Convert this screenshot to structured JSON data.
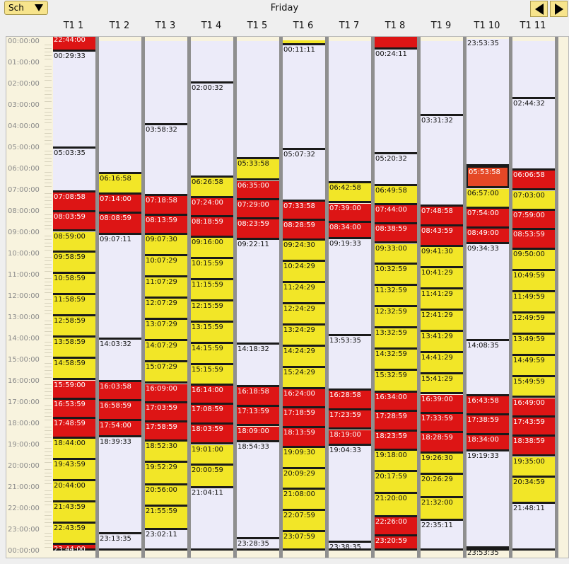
{
  "header": {
    "schedule_label": "Sch",
    "day": "Friday"
  },
  "hours": [
    "00:00:00",
    "01:00:00",
    "02:00:00",
    "03:00:00",
    "04:00:00",
    "05:00:00",
    "06:00:00",
    "07:00:00",
    "08:00:00",
    "09:00:00",
    "10:00:00",
    "11:00:00",
    "12:00:00",
    "13:00:00",
    "14:00:00",
    "15:00:00",
    "16:00:00",
    "17:00:00",
    "18:00:00",
    "19:00:00",
    "20:00:00",
    "21:00:00",
    "22:00:00",
    "23:00:00",
    "00:00:00"
  ],
  "columns": [
    {
      "name": "T1 1",
      "blocks": [
        {
          "t": "22:44:00",
          "s": "red",
          "b": "-0:16"
        },
        {
          "t": "00:29:33",
          "s": "idle"
        },
        {
          "t": "05:03:35",
          "s": "idle"
        },
        {
          "t": "07:08:58",
          "s": "red"
        },
        {
          "t": "08:03:59",
          "s": "red"
        },
        {
          "t": "08:59:00",
          "s": "yellow"
        },
        {
          "t": "09:58:59",
          "s": "yellow"
        },
        {
          "t": "10:58:59",
          "s": "yellow"
        },
        {
          "t": "11:58:59",
          "s": "yellow"
        },
        {
          "t": "12:58:59",
          "s": "yellow"
        },
        {
          "t": "13:58:59",
          "s": "yellow"
        },
        {
          "t": "14:58:59",
          "s": "yellow"
        },
        {
          "t": "15:59:00",
          "s": "red"
        },
        {
          "t": "16:53:59",
          "s": "red"
        },
        {
          "t": "17:48:59",
          "s": "red"
        },
        {
          "t": "18:44:00",
          "s": "yellow"
        },
        {
          "t": "19:43:59",
          "s": "yellow"
        },
        {
          "t": "20:44:00",
          "s": "yellow"
        },
        {
          "t": "21:43:59",
          "s": "yellow"
        },
        {
          "t": "22:43:59",
          "s": "yellow"
        },
        {
          "t": "23:44:00",
          "s": "red"
        }
      ]
    },
    {
      "name": "T1 2",
      "blocks": [
        {
          "t": "",
          "s": "idle",
          "b": "00:00:00"
        },
        {
          "t": "06:16:58",
          "s": "yellow"
        },
        {
          "t": "07:14:00",
          "s": "red"
        },
        {
          "t": "08:08:59",
          "s": "red"
        },
        {
          "t": "09:07:11",
          "s": "idle"
        },
        {
          "t": "14:03:32",
          "s": "idle"
        },
        {
          "t": "16:03:58",
          "s": "red"
        },
        {
          "t": "16:58:59",
          "s": "red"
        },
        {
          "t": "17:54:00",
          "s": "red"
        },
        {
          "t": "18:39:33",
          "s": "idle"
        },
        {
          "t": "23:13:35",
          "s": "idle"
        }
      ]
    },
    {
      "name": "T1 3",
      "blocks": [
        {
          "t": "",
          "s": "idle",
          "b": "00:00:00"
        },
        {
          "t": "03:58:32",
          "s": "idle"
        },
        {
          "t": "07:18:58",
          "s": "red"
        },
        {
          "t": "08:13:59",
          "s": "red"
        },
        {
          "t": "09:07:30",
          "s": "yellow"
        },
        {
          "t": "10:07:29",
          "s": "yellow"
        },
        {
          "t": "11:07:29",
          "s": "yellow"
        },
        {
          "t": "12:07:29",
          "s": "yellow"
        },
        {
          "t": "13:07:29",
          "s": "yellow"
        },
        {
          "t": "14:07:29",
          "s": "yellow"
        },
        {
          "t": "15:07:29",
          "s": "yellow"
        },
        {
          "t": "16:09:00",
          "s": "red"
        },
        {
          "t": "17:03:59",
          "s": "red"
        },
        {
          "t": "17:58:59",
          "s": "red"
        },
        {
          "t": "18:52:30",
          "s": "yellow"
        },
        {
          "t": "19:52:29",
          "s": "yellow"
        },
        {
          "t": "20:56:00",
          "s": "yellow"
        },
        {
          "t": "21:55:59",
          "s": "yellow"
        },
        {
          "t": "23:02:11",
          "s": "idle"
        }
      ]
    },
    {
      "name": "T1 4",
      "blocks": [
        {
          "t": "",
          "s": "idle",
          "b": "00:00:00"
        },
        {
          "t": "02:00:32",
          "s": "idle"
        },
        {
          "t": "06:26:58",
          "s": "yellow"
        },
        {
          "t": "07:24:00",
          "s": "red"
        },
        {
          "t": "08:18:59",
          "s": "red"
        },
        {
          "t": "09:16:00",
          "s": "yellow"
        },
        {
          "t": "10:15:59",
          "s": "yellow"
        },
        {
          "t": "11:15:59",
          "s": "yellow"
        },
        {
          "t": "12:15:59",
          "s": "yellow"
        },
        {
          "t": "13:15:59",
          "s": "yellow"
        },
        {
          "t": "14:15:59",
          "s": "yellow"
        },
        {
          "t": "15:15:59",
          "s": "yellow"
        },
        {
          "t": "16:14:00",
          "s": "red"
        },
        {
          "t": "17:08:59",
          "s": "red"
        },
        {
          "t": "18:03:59",
          "s": "red"
        },
        {
          "t": "19:01:00",
          "s": "yellow"
        },
        {
          "t": "20:00:59",
          "s": "yellow"
        },
        {
          "t": "21:04:11",
          "s": "idle"
        }
      ]
    },
    {
      "name": "T1 5",
      "blocks": [
        {
          "t": "",
          "s": "idle",
          "b": "00:00:00"
        },
        {
          "t": "05:33:58",
          "s": "yellow"
        },
        {
          "t": "06:35:00",
          "s": "red"
        },
        {
          "t": "07:29:00",
          "s": "red"
        },
        {
          "t": "08:23:59",
          "s": "red"
        },
        {
          "t": "09:22:11",
          "s": "idle"
        },
        {
          "t": "14:18:32",
          "s": "idle"
        },
        {
          "t": "16:18:58",
          "s": "red"
        },
        {
          "t": "17:13:59",
          "s": "red"
        },
        {
          "t": "18:09:00",
          "s": "red"
        },
        {
          "t": "18:54:33",
          "s": "idle"
        },
        {
          "t": "23:28:35",
          "s": "idle"
        }
      ]
    },
    {
      "name": "T1 6",
      "blocks": [
        {
          "t": "",
          "s": "yellow",
          "b": "-0:02"
        },
        {
          "t": "00:11:11",
          "s": "idle"
        },
        {
          "t": "05:07:32",
          "s": "idle"
        },
        {
          "t": "07:33:58",
          "s": "red"
        },
        {
          "t": "08:28:59",
          "s": "red"
        },
        {
          "t": "09:24:30",
          "s": "yellow"
        },
        {
          "t": "10:24:29",
          "s": "yellow"
        },
        {
          "t": "11:24:29",
          "s": "yellow"
        },
        {
          "t": "12:24:29",
          "s": "yellow"
        },
        {
          "t": "13:24:29",
          "s": "yellow"
        },
        {
          "t": "14:24:29",
          "s": "yellow"
        },
        {
          "t": "15:24:29",
          "s": "yellow"
        },
        {
          "t": "16:24:00",
          "s": "red"
        },
        {
          "t": "17:18:59",
          "s": "red"
        },
        {
          "t": "18:13:59",
          "s": "red"
        },
        {
          "t": "19:09:30",
          "s": "yellow"
        },
        {
          "t": "20:09:29",
          "s": "yellow"
        },
        {
          "t": "21:08:00",
          "s": "yellow"
        },
        {
          "t": "22:07:59",
          "s": "yellow"
        },
        {
          "t": "23:07:59",
          "s": "yellow"
        }
      ]
    },
    {
      "name": "T1 7",
      "blocks": [
        {
          "t": "",
          "s": "idle",
          "b": "00:00:00"
        },
        {
          "t": "06:42:58",
          "s": "yellow"
        },
        {
          "t": "07:39:00",
          "s": "red"
        },
        {
          "t": "08:34:00",
          "s": "red"
        },
        {
          "t": "09:19:33",
          "s": "idle"
        },
        {
          "t": "13:53:35",
          "s": "idle"
        },
        {
          "t": "16:28:58",
          "s": "red"
        },
        {
          "t": "17:23:59",
          "s": "red"
        },
        {
          "t": "18:19:00",
          "s": "red"
        },
        {
          "t": "19:04:33",
          "s": "idle"
        },
        {
          "t": "23:38:35",
          "s": "idle"
        }
      ]
    },
    {
      "name": "T1 8",
      "blocks": [
        {
          "t": "",
          "s": "red",
          "b": "-0:15"
        },
        {
          "t": "00:24:11",
          "s": "idle"
        },
        {
          "t": "05:20:32",
          "s": "idle"
        },
        {
          "t": "06:49:58",
          "s": "yellow"
        },
        {
          "t": "07:44:00",
          "s": "red"
        },
        {
          "t": "08:38:59",
          "s": "red"
        },
        {
          "t": "09:33:00",
          "s": "yellow"
        },
        {
          "t": "10:32:59",
          "s": "yellow"
        },
        {
          "t": "11:32:59",
          "s": "yellow"
        },
        {
          "t": "12:32:59",
          "s": "yellow"
        },
        {
          "t": "13:32:59",
          "s": "yellow"
        },
        {
          "t": "14:32:59",
          "s": "yellow"
        },
        {
          "t": "15:32:59",
          "s": "yellow"
        },
        {
          "t": "16:34:00",
          "s": "red"
        },
        {
          "t": "17:28:59",
          "s": "red"
        },
        {
          "t": "18:23:59",
          "s": "red"
        },
        {
          "t": "19:18:00",
          "s": "yellow"
        },
        {
          "t": "20:17:59",
          "s": "yellow"
        },
        {
          "t": "21:20:00",
          "s": "yellow"
        },
        {
          "t": "22:26:00",
          "s": "red"
        },
        {
          "t": "23:20:59",
          "s": "red"
        }
      ]
    },
    {
      "name": "T1 9",
      "blocks": [
        {
          "t": "",
          "s": "idle",
          "b": "00:00:00"
        },
        {
          "t": "03:31:32",
          "s": "idle"
        },
        {
          "t": "07:48:58",
          "s": "red"
        },
        {
          "t": "08:43:59",
          "s": "red"
        },
        {
          "t": "09:41:30",
          "s": "yellow"
        },
        {
          "t": "10:41:29",
          "s": "yellow"
        },
        {
          "t": "11:41:29",
          "s": "yellow"
        },
        {
          "t": "12:41:29",
          "s": "yellow"
        },
        {
          "t": "13:41:29",
          "s": "yellow"
        },
        {
          "t": "14:41:29",
          "s": "yellow"
        },
        {
          "t": "15:41:29",
          "s": "yellow"
        },
        {
          "t": "16:39:00",
          "s": "red"
        },
        {
          "t": "17:33:59",
          "s": "red"
        },
        {
          "t": "18:28:59",
          "s": "red"
        },
        {
          "t": "19:26:30",
          "s": "yellow"
        },
        {
          "t": "20:26:29",
          "s": "yellow"
        },
        {
          "t": "21:32:00",
          "s": "yellow"
        },
        {
          "t": "22:35:11",
          "s": "idle"
        }
      ]
    },
    {
      "name": "T1 10",
      "blocks": [
        {
          "t": "23:53:35",
          "s": "idle",
          "b": "-0:07"
        },
        {
          "t": "05:53:58",
          "s": "orange"
        },
        {
          "t": "06:57:00",
          "s": "yellow"
        },
        {
          "t": "07:54:00",
          "s": "red"
        },
        {
          "t": "08:49:00",
          "s": "red"
        },
        {
          "t": "09:34:33",
          "s": "idle"
        },
        {
          "t": "14:08:35",
          "s": "idle"
        },
        {
          "t": "16:43:58",
          "s": "red"
        },
        {
          "t": "17:38:59",
          "s": "red"
        },
        {
          "t": "18:34:00",
          "s": "red"
        },
        {
          "t": "19:19:33",
          "s": "idle"
        },
        {
          "t": "23:53:35",
          "s": "idle"
        }
      ]
    },
    {
      "name": "T1 11",
      "blocks": [
        {
          "t": "",
          "s": "idle",
          "b": "00:00:00"
        },
        {
          "t": "02:44:32",
          "s": "idle"
        },
        {
          "t": "06:06:58",
          "s": "red"
        },
        {
          "t": "07:03:00",
          "s": "yellow"
        },
        {
          "t": "07:59:00",
          "s": "red"
        },
        {
          "t": "08:53:59",
          "s": "red"
        },
        {
          "t": "09:50:00",
          "s": "yellow"
        },
        {
          "t": "10:49:59",
          "s": "yellow"
        },
        {
          "t": "11:49:59",
          "s": "yellow"
        },
        {
          "t": "12:49:59",
          "s": "yellow"
        },
        {
          "t": "13:49:59",
          "s": "yellow"
        },
        {
          "t": "14:49:59",
          "s": "yellow"
        },
        {
          "t": "15:49:59",
          "s": "yellow"
        },
        {
          "t": "16:49:00",
          "s": "red"
        },
        {
          "t": "17:43:59",
          "s": "red"
        },
        {
          "t": "18:38:59",
          "s": "red"
        },
        {
          "t": "19:35:00",
          "s": "yellow"
        },
        {
          "t": "20:34:59",
          "s": "yellow"
        },
        {
          "t": "21:48:11",
          "s": "idle"
        }
      ]
    }
  ]
}
